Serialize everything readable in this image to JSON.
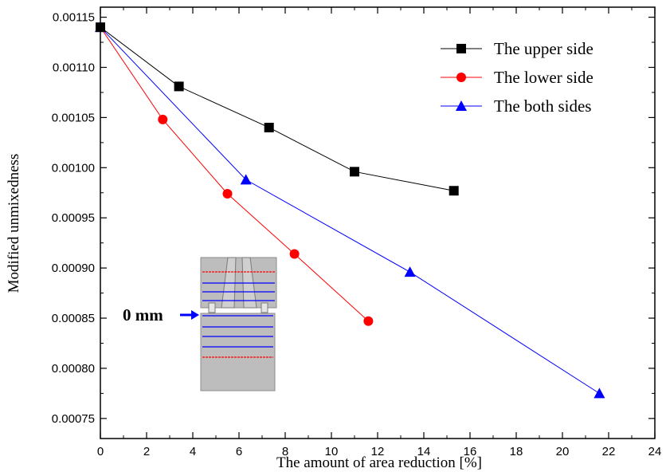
{
  "chart_data": {
    "type": "line",
    "xlabel": "The amount of area reduction [%]",
    "ylabel": "Modified unmixedness",
    "xlim": [
      0,
      24
    ],
    "ylim": [
      0.00073,
      0.00116
    ],
    "x_ticks": [
      "0",
      "2",
      "4",
      "6",
      "8",
      "10",
      "12",
      "14",
      "16",
      "18",
      "20",
      "22",
      "24"
    ],
    "y_ticks": [
      "0.00075",
      "0.00080",
      "0.00085",
      "0.00090",
      "0.00095",
      "0.00100",
      "0.00105",
      "0.00110",
      "0.00115"
    ],
    "legend_position": "top-right",
    "grid": false,
    "series": [
      {
        "name": "The upper side",
        "color": "#000000",
        "marker": "square",
        "x": [
          0,
          3.4,
          7.3,
          11.0,
          15.3
        ],
        "y": [
          0.00114,
          0.001081,
          0.00104,
          0.000996,
          0.000977
        ]
      },
      {
        "name": "The lower side",
        "color": "#ff0000",
        "marker": "circle",
        "x": [
          0,
          2.7,
          5.5,
          8.4,
          11.6
        ],
        "y": [
          0.00114,
          0.001048,
          0.000974,
          0.000914,
          0.000847
        ]
      },
      {
        "name": "The both sides",
        "color": "#0000ff",
        "marker": "triangle",
        "x": [
          0,
          6.3,
          13.4,
          21.6
        ],
        "y": [
          0.00114,
          0.000988,
          0.000896,
          0.000775
        ]
      }
    ],
    "inset": {
      "label": "0 mm",
      "label_color": "#000000",
      "arrow_color": "#0000ff",
      "block_color": "#bdbdbd",
      "line_colors": [
        "#ff0000",
        "#0000ff"
      ]
    }
  }
}
